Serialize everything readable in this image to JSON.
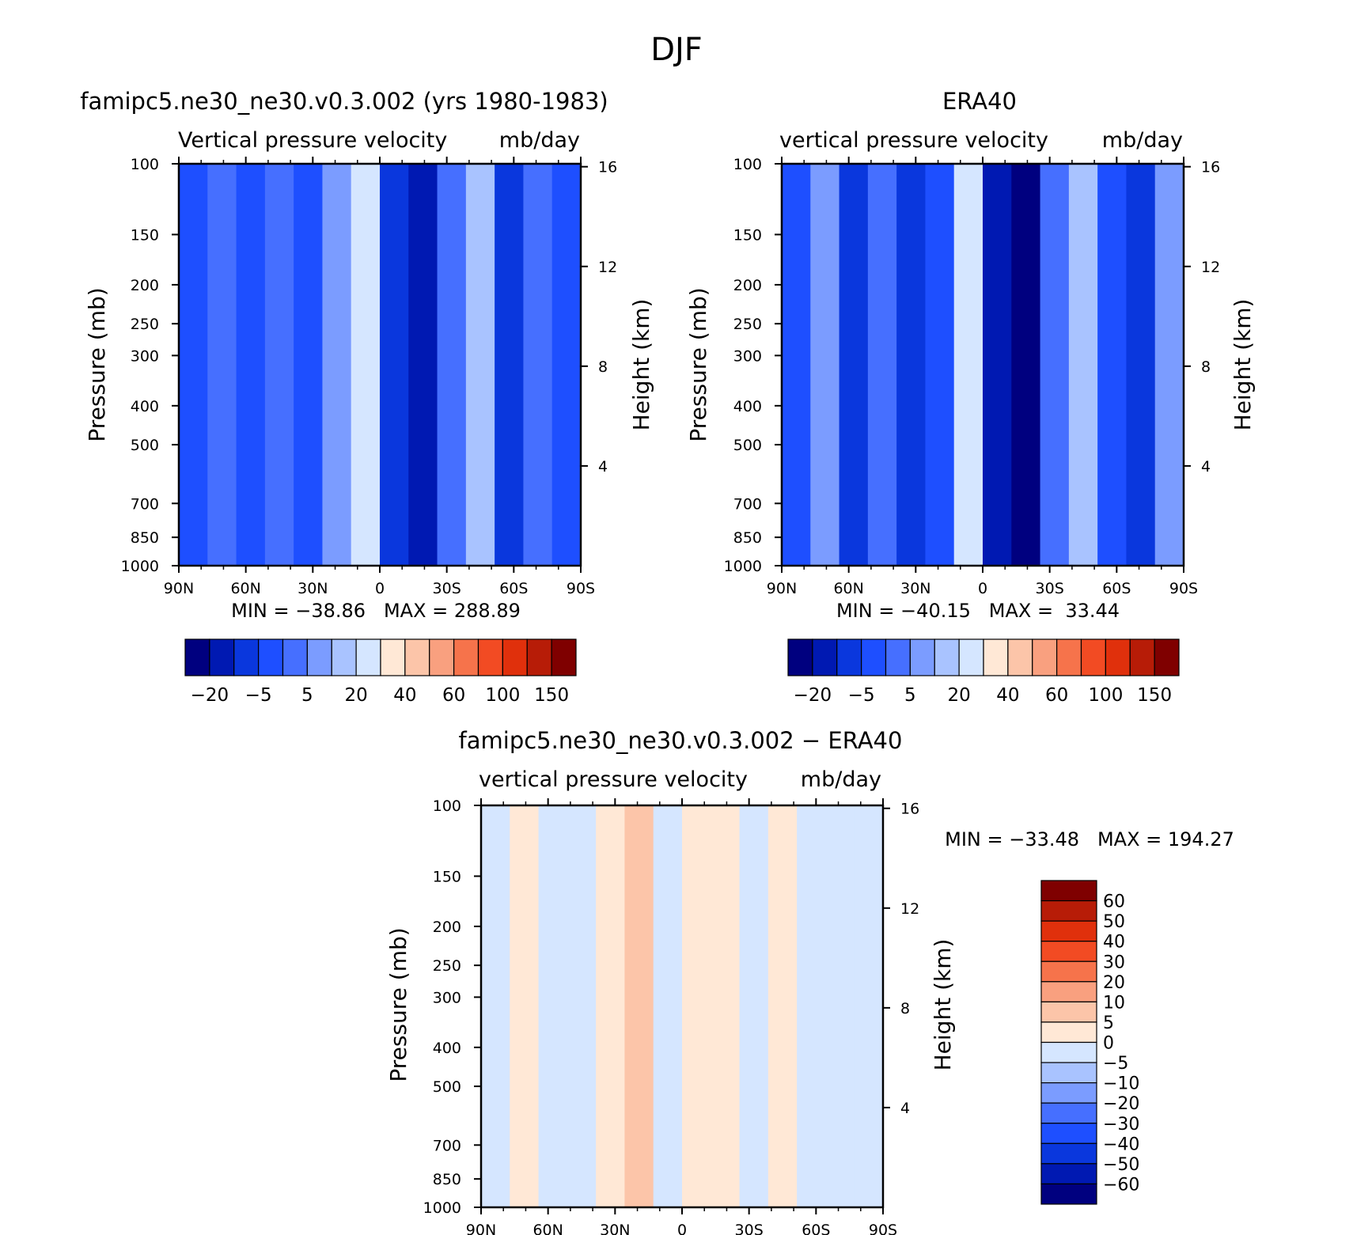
{
  "figure": {
    "title": "DJF"
  },
  "chart_data": [
    {
      "type": "contour",
      "id": "model",
      "title": "famipc5.ne30_ne30.v0.3.002 (yrs 1980-1983)",
      "subtitle_left": "Vertical pressure velocity",
      "subtitle_right": "mb/day",
      "xlabel": "",
      "ylabel": "Pressure (mb)",
      "ylabel_right": "Height (km)",
      "x_ticks": [
        "90N",
        "60N",
        "30N",
        "0",
        "30S",
        "60S",
        "90S"
      ],
      "y_ticks": [
        "100",
        "150",
        "200",
        "250",
        "300",
        "400",
        "500",
        "700",
        "850",
        "1000"
      ],
      "y_ticks_right": [
        "16",
        "12",
        "8",
        "4"
      ],
      "ylim": [
        1000,
        100
      ],
      "stats_text": "MIN = −38.86   MAX = 288.89",
      "colorbar": {
        "orientation": "horizontal",
        "tick_labels": [
          "−20",
          "−5",
          "5",
          "20",
          "40",
          "60",
          "100",
          "150"
        ],
        "colors": [
          "#00007f",
          "#0019b2",
          "#0a37dd",
          "#1e4fff",
          "#466fff",
          "#7b9cff",
          "#a9c3ff",
          "#d5e6ff",
          "#ffe8d6",
          "#fcc5a9",
          "#f9a07f",
          "#f6734b",
          "#f24b23",
          "#e0300c",
          "#b71c07",
          "#7f0000"
        ]
      },
      "band_colors": [
        "#1e4fff",
        "#466fff",
        "#1e4fff",
        "#466fff",
        "#1e4fff",
        "#7b9cff",
        "#d5e6ff",
        "#0a37dd",
        "#0019b2",
        "#466fff",
        "#a9c3ff",
        "#0a37dd",
        "#466fff",
        "#1e4fff"
      ]
    },
    {
      "type": "contour",
      "id": "obs",
      "title": "ERA40",
      "subtitle_left": "vertical pressure velocity",
      "subtitle_right": "mb/day",
      "xlabel": "",
      "ylabel": "Pressure (mb)",
      "ylabel_right": "Height (km)",
      "x_ticks": [
        "90N",
        "60N",
        "30N",
        "0",
        "30S",
        "60S",
        "90S"
      ],
      "y_ticks": [
        "100",
        "150",
        "200",
        "250",
        "300",
        "400",
        "500",
        "700",
        "850",
        "1000"
      ],
      "y_ticks_right": [
        "16",
        "12",
        "8",
        "4"
      ],
      "ylim": [
        1000,
        100
      ],
      "stats_text": "MIN = −40.15   MAX =  33.44",
      "colorbar": {
        "orientation": "horizontal",
        "tick_labels": [
          "−20",
          "−5",
          "5",
          "20",
          "40",
          "60",
          "100",
          "150"
        ],
        "colors": [
          "#00007f",
          "#0019b2",
          "#0a37dd",
          "#1e4fff",
          "#466fff",
          "#7b9cff",
          "#a9c3ff",
          "#d5e6ff",
          "#ffe8d6",
          "#fcc5a9",
          "#f9a07f",
          "#f6734b",
          "#f24b23",
          "#e0300c",
          "#b71c07",
          "#7f0000"
        ]
      },
      "band_colors": [
        "#1e4fff",
        "#7b9cff",
        "#0a37dd",
        "#466fff",
        "#0a37dd",
        "#1e4fff",
        "#d5e6ff",
        "#0019b2",
        "#00007f",
        "#466fff",
        "#a9c3ff",
        "#1e4fff",
        "#0a37dd",
        "#7b9cff"
      ]
    },
    {
      "type": "contour",
      "id": "diff",
      "title": "famipc5.ne30_ne30.v0.3.002 − ERA40",
      "subtitle_left": "vertical pressure velocity",
      "subtitle_right": "mb/day",
      "xlabel": "",
      "ylabel": "Pressure (mb)",
      "ylabel_right": "Height (km)",
      "x_ticks": [
        "90N",
        "60N",
        "30N",
        "0",
        "30S",
        "60S",
        "90S"
      ],
      "y_ticks": [
        "100",
        "150",
        "200",
        "250",
        "300",
        "400",
        "500",
        "700",
        "850",
        "1000"
      ],
      "y_ticks_right": [
        "16",
        "12",
        "8",
        "4"
      ],
      "ylim": [
        1000,
        100
      ],
      "stats_text": "MIN = −33.48   MAX = 194.27",
      "colorbar": {
        "orientation": "vertical",
        "tick_labels": [
          "60",
          "50",
          "40",
          "30",
          "20",
          "10",
          "5",
          "0",
          "−5",
          "−10",
          "−20",
          "−30",
          "−40",
          "−50",
          "−60"
        ],
        "colors": [
          "#7f0000",
          "#b71c07",
          "#e0300c",
          "#f24b23",
          "#f6734b",
          "#f9a07f",
          "#fcc5a9",
          "#ffe8d6",
          "#d5e6ff",
          "#a9c3ff",
          "#7b9cff",
          "#466fff",
          "#1e4fff",
          "#0a37dd",
          "#0019b2",
          "#00007f"
        ]
      },
      "band_colors": [
        "#d5e6ff",
        "#ffe8d6",
        "#d5e6ff",
        "#d5e6ff",
        "#ffe8d6",
        "#fcc5a9",
        "#d5e6ff",
        "#ffe8d6",
        "#ffe8d6",
        "#d5e6ff",
        "#ffe8d6",
        "#d5e6ff",
        "#d5e6ff",
        "#d5e6ff"
      ]
    }
  ]
}
